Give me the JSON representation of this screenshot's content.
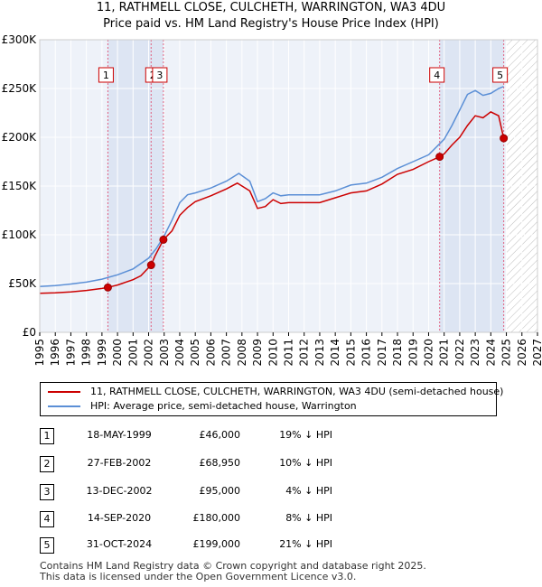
{
  "title_line1": "11, RATHMELL CLOSE, CULCHETH, WARRINGTON, WA3 4DU",
  "title_line2": "Price paid vs. HM Land Registry's House Price Index (HPI)",
  "chart_data": {
    "type": "line",
    "title": "11, RATHMELL CLOSE, CULCHETH, WARRINGTON, WA3 4DU",
    "subtitle": "Price paid vs. HM Land Registry's House Price Index (HPI)",
    "xlabel": "",
    "ylabel": "",
    "xlim": [
      1995,
      2027
    ],
    "ylim": [
      0,
      300000
    ],
    "x_ticks": [
      1995,
      1996,
      1997,
      1998,
      1999,
      2000,
      2001,
      2002,
      2003,
      2004,
      2005,
      2006,
      2007,
      2008,
      2009,
      2010,
      2011,
      2012,
      2013,
      2014,
      2015,
      2016,
      2017,
      2018,
      2019,
      2020,
      2021,
      2022,
      2023,
      2024,
      2025,
      2026,
      2027
    ],
    "y_ticks": [
      0,
      50000,
      100000,
      150000,
      200000,
      250000,
      300000
    ],
    "y_tick_labels": [
      "£0",
      "£50K",
      "£100K",
      "£150K",
      "£200K",
      "£250K",
      "£300K"
    ],
    "grid": true,
    "colors": {
      "property": "#cc0000",
      "hpi": "#5b8fd6",
      "shade": "#e8eef8",
      "vline": "#e06080"
    },
    "future_hatch_from": 2025.0,
    "series": [
      {
        "name": "11, RATHMELL CLOSE, CULCHETH, WARRINGTON, WA3 4DU (semi-detached house)",
        "color": "#cc0000",
        "x": [
          1995.0,
          1996.0,
          1997.0,
          1998.0,
          1999.0,
          1999.38,
          2000.0,
          2001.0,
          2001.5,
          2002.16,
          2002.4,
          2002.95,
          2003.5,
          2004.0,
          2004.5,
          2005.0,
          2006.0,
          2007.0,
          2007.7,
          2008.5,
          2009.0,
          2009.5,
          2010.0,
          2010.5,
          2011.0,
          2012.0,
          2013.0,
          2014.0,
          2015.0,
          2016.0,
          2017.0,
          2018.0,
          2019.0,
          2020.0,
          2020.71,
          2021.0,
          2021.5,
          2022.0,
          2022.5,
          2023.0,
          2023.5,
          2024.0,
          2024.5,
          2024.83
        ],
        "y": [
          40000,
          40500,
          41500,
          43000,
          45000,
          46000,
          48500,
          54000,
          58000,
          68950,
          78000,
          95000,
          104000,
          120000,
          128000,
          134000,
          140000,
          147000,
          153000,
          145000,
          127000,
          129000,
          136000,
          132000,
          133000,
          133000,
          133000,
          138000,
          143000,
          145000,
          152000,
          162000,
          167000,
          175000,
          180000,
          183000,
          192000,
          200000,
          212000,
          222000,
          220000,
          226000,
          222000,
          199000
        ]
      },
      {
        "name": "HPI: Average price, semi-detached house, Warrington",
        "color": "#5b8fd6",
        "x": [
          1995.0,
          1996.0,
          1997.0,
          1998.0,
          1999.0,
          2000.0,
          2001.0,
          2002.0,
          2002.5,
          2003.0,
          2003.5,
          2004.0,
          2004.5,
          2005.0,
          2006.0,
          2007.0,
          2007.8,
          2008.5,
          2009.0,
          2009.5,
          2010.0,
          2010.5,
          2011.0,
          2012.0,
          2013.0,
          2014.0,
          2015.0,
          2016.0,
          2017.0,
          2018.0,
          2019.0,
          2020.0,
          2020.5,
          2021.0,
          2021.5,
          2022.0,
          2022.5,
          2023.0,
          2023.5,
          2024.0,
          2024.5,
          2024.83
        ],
        "y": [
          47000,
          48000,
          49500,
          51500,
          54500,
          59000,
          65000,
          76000,
          86000,
          99000,
          115000,
          133000,
          141000,
          143000,
          148000,
          155000,
          163000,
          155000,
          134000,
          137000,
          143000,
          140000,
          141000,
          141000,
          141000,
          145000,
          151000,
          153000,
          159000,
          168000,
          175000,
          182000,
          190000,
          198000,
          212000,
          228000,
          244000,
          248000,
          243000,
          245000,
          250000,
          252000
        ]
      }
    ],
    "sales": [
      {
        "label": "1",
        "x": 1999.38,
        "y": 46000
      },
      {
        "label": "2",
        "x": 2002.16,
        "y": 68950
      },
      {
        "label": "3",
        "x": 2002.95,
        "y": 95000
      },
      {
        "label": "4",
        "x": 2020.71,
        "y": 180000
      },
      {
        "label": "5",
        "x": 2024.83,
        "y": 199000
      }
    ],
    "shaded_ranges": [
      [
        1999.38,
        2002.95
      ],
      [
        2020.71,
        2024.83
      ]
    ]
  },
  "legend": {
    "property_label": "11, RATHMELL CLOSE, CULCHETH, WARRINGTON, WA3 4DU (semi-detached house)",
    "hpi_label": "HPI: Average price, semi-detached house, Warrington"
  },
  "sales_table": [
    {
      "num": "1",
      "date": "18-MAY-1999",
      "price": "£46,000",
      "hpi": "19% ↓ HPI"
    },
    {
      "num": "2",
      "date": "27-FEB-2002",
      "price": "£68,950",
      "hpi": "10% ↓ HPI"
    },
    {
      "num": "3",
      "date": "13-DEC-2002",
      "price": "£95,000",
      "hpi": "4% ↓ HPI"
    },
    {
      "num": "4",
      "date": "14-SEP-2020",
      "price": "£180,000",
      "hpi": "8% ↓ HPI"
    },
    {
      "num": "5",
      "date": "31-OCT-2024",
      "price": "£199,000",
      "hpi": "21% ↓ HPI"
    }
  ],
  "footer_line1": "Contains HM Land Registry data © Crown copyright and database right 2025.",
  "footer_line2": "This data is licensed under the Open Government Licence v3.0."
}
